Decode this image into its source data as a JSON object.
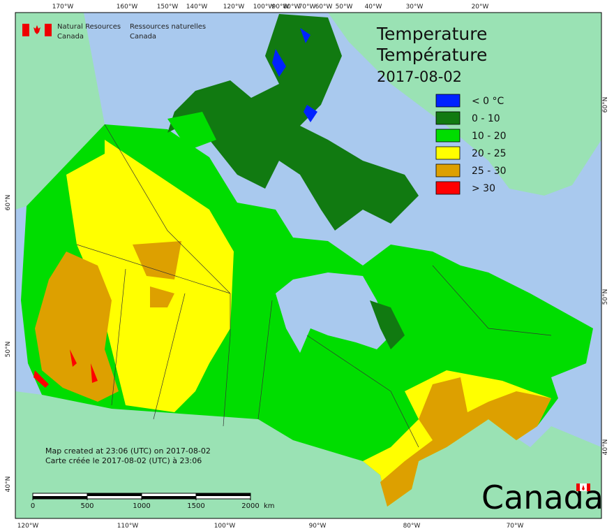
{
  "header": {
    "department_en": [
      "Natural Resources",
      "Canada"
    ],
    "department_fr": [
      "Ressources naturelles",
      "Canada"
    ]
  },
  "title": {
    "lines": [
      "Temperature",
      "Température",
      "2017-08-02"
    ]
  },
  "legend": [
    {
      "label": "< 0 °C",
      "color": "#0022ff"
    },
    {
      "label": "0 - 10",
      "color": "#117a11"
    },
    {
      "label": "10 - 20",
      "color": "#00dd00"
    },
    {
      "label": "20 - 25",
      "color": "#ffff00"
    },
    {
      "label": "25 - 30",
      "color": "#dda000"
    },
    {
      "label": "> 30",
      "color": "#ff0000"
    }
  ],
  "graticule": {
    "top": [
      "170°W",
      "160°W",
      "150°W",
      "140°W",
      "120°W",
      "100°W",
      "90°W",
      "80°W",
      "70°W",
      "60°W",
      "50°W",
      "40°W",
      "30°W",
      "20°W"
    ],
    "bottom": [
      "120°W",
      "110°W",
      "100°W",
      "90°W",
      "80°W",
      "70°W"
    ],
    "left": [
      "60°N",
      "50°N",
      "40°N"
    ],
    "right": [
      "60°N",
      "50°N",
      "40°N"
    ]
  },
  "notes": [
    "Map created at 23:06 (UTC) on 2017-08-02",
    "Carte créée le 2017-08-02 (UTC) à 23:06"
  ],
  "scale_bar": {
    "ticks": [
      "0",
      "500",
      "1000",
      "1500",
      "2000"
    ],
    "unit": "km"
  },
  "wordmark": "Canada"
}
